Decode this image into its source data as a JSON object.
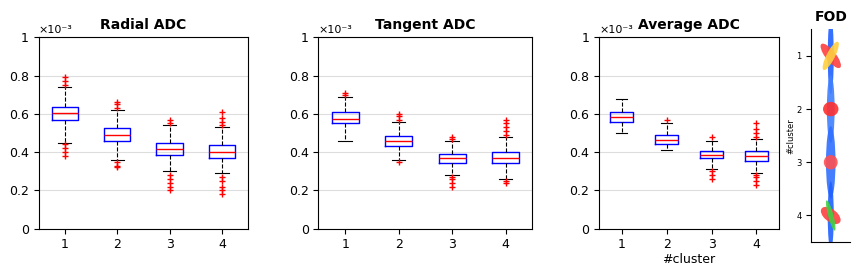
{
  "chart_data": [
    {
      "type": "box",
      "title": "Radial ADC",
      "y_scale_label": "×10⁻³",
      "categories": [
        "1",
        "2",
        "3",
        "4"
      ],
      "boxes": [
        {
          "whislo": 0.45,
          "q1": 0.57,
          "med": 0.605,
          "q3": 0.635,
          "whishi": 0.74,
          "fliers": [
            0.38,
            0.4,
            0.42,
            0.44,
            0.75,
            0.77,
            0.79
          ]
        },
        {
          "whislo": 0.36,
          "q1": 0.46,
          "med": 0.49,
          "q3": 0.525,
          "whishi": 0.62,
          "fliers": [
            0.32,
            0.33,
            0.35,
            0.63,
            0.65,
            0.66
          ]
        },
        {
          "whislo": 0.3,
          "q1": 0.385,
          "med": 0.415,
          "q3": 0.45,
          "whishi": 0.54,
          "fliers": [
            0.2,
            0.22,
            0.24,
            0.26,
            0.28,
            0.55,
            0.57
          ]
        },
        {
          "whislo": 0.29,
          "q1": 0.37,
          "med": 0.4,
          "q3": 0.435,
          "whishi": 0.53,
          "fliers": [
            0.18,
            0.2,
            0.22,
            0.25,
            0.27,
            0.54,
            0.56,
            0.58,
            0.61
          ]
        }
      ],
      "color": "#0000ff",
      "ylim": [
        0,
        1
      ],
      "yticks": [
        0,
        0.2,
        0.4,
        0.6,
        0.8,
        1
      ],
      "grid": "y"
    },
    {
      "type": "box",
      "title": "Tangent ADC",
      "y_scale_label": "×10⁻³",
      "categories": [
        "1",
        "2",
        "3",
        "4"
      ],
      "boxes": [
        {
          "whislo": 0.46,
          "q1": 0.55,
          "med": 0.575,
          "q3": 0.61,
          "whishi": 0.69,
          "fliers": [
            0.7,
            0.71
          ]
        },
        {
          "whislo": 0.36,
          "q1": 0.43,
          "med": 0.46,
          "q3": 0.485,
          "whishi": 0.56,
          "fliers": [
            0.35,
            0.57,
            0.59,
            0.6
          ]
        },
        {
          "whislo": 0.28,
          "q1": 0.345,
          "med": 0.37,
          "q3": 0.39,
          "whishi": 0.46,
          "fliers": [
            0.22,
            0.24,
            0.26,
            0.27,
            0.47,
            0.48
          ]
        },
        {
          "whislo": 0.26,
          "q1": 0.345,
          "med": 0.37,
          "q3": 0.4,
          "whishi": 0.48,
          "fliers": [
            0.24,
            0.25,
            0.49,
            0.51,
            0.53,
            0.55,
            0.57
          ]
        }
      ],
      "color": "#0000ff",
      "ylim": [
        0,
        1
      ],
      "yticks": [
        0,
        0.2,
        0.4,
        0.6,
        0.8,
        1
      ],
      "grid": "y"
    },
    {
      "type": "box",
      "title": "Average ADC",
      "y_scale_label": "×10⁻³",
      "x_label": "#cluster",
      "categories": [
        "1",
        "2",
        "3",
        "4"
      ],
      "boxes": [
        {
          "whislo": 0.5,
          "q1": 0.555,
          "med": 0.585,
          "q3": 0.61,
          "whishi": 0.68,
          "fliers": []
        },
        {
          "whislo": 0.41,
          "q1": 0.445,
          "med": 0.465,
          "q3": 0.49,
          "whishi": 0.55,
          "fliers": [
            0.57
          ]
        },
        {
          "whislo": 0.31,
          "q1": 0.37,
          "med": 0.385,
          "q3": 0.405,
          "whishi": 0.46,
          "fliers": [
            0.26,
            0.28,
            0.3,
            0.48
          ]
        },
        {
          "whislo": 0.29,
          "q1": 0.355,
          "med": 0.38,
          "q3": 0.405,
          "whishi": 0.47,
          "fliers": [
            0.23,
            0.25,
            0.27,
            0.28,
            0.48,
            0.5,
            0.52,
            0.55
          ]
        }
      ],
      "color": "#0000ff",
      "ylim": [
        0,
        1
      ],
      "yticks": [
        0,
        0.2,
        0.4,
        0.6,
        0.8,
        1
      ],
      "grid": "y"
    },
    {
      "type": "glyph",
      "title": "FOD",
      "y_label": "#cluster",
      "ylim": [
        4.5,
        0.5
      ],
      "yticks": [
        1,
        2,
        3,
        4
      ],
      "tick_labels": "y"
    }
  ]
}
